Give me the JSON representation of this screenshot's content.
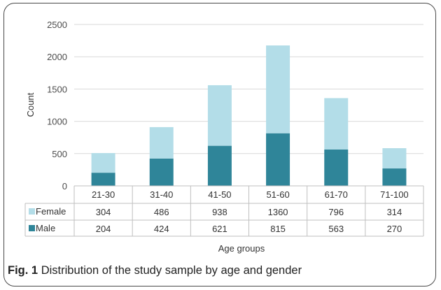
{
  "caption": {
    "label": "Fig. 1",
    "text": "Distribution of the study sample by age and gender"
  },
  "colors": {
    "female": "#b3dde8",
    "male": "#2f8599",
    "grid": "#d9d9d9",
    "table_border": "#bfbfbf"
  },
  "chart_data": {
    "type": "bar",
    "stacked": true,
    "categories": [
      "21-30",
      "31-40",
      "41-50",
      "51-60",
      "61-70",
      "71-100"
    ],
    "series": [
      {
        "name": "Male",
        "values": [
          204,
          424,
          621,
          815,
          563,
          270
        ],
        "color": "#2f8599"
      },
      {
        "name": "Female",
        "values": [
          304,
          486,
          938,
          1360,
          796,
          314
        ],
        "color": "#b3dde8"
      }
    ],
    "title": "",
    "xlabel": "Age groups",
    "ylabel": "Count",
    "ylim": [
      0,
      2500
    ],
    "yticks": [
      0,
      500,
      1000,
      1500,
      2000,
      2500
    ],
    "grid": true,
    "data_table": true
  }
}
